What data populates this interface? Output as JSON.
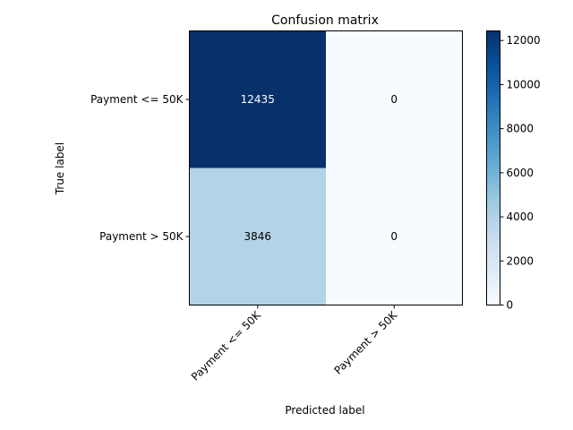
{
  "chart_data": {
    "type": "heatmap",
    "title": "Confusion matrix",
    "xlabel": "Predicted label",
    "ylabel": "True label",
    "x_categories": [
      "Payment <= 50K",
      "Payment > 50K"
    ],
    "y_categories": [
      "Payment <= 50K",
      "Payment > 50K"
    ],
    "values": [
      [
        12435,
        0
      ],
      [
        3846,
        0
      ]
    ],
    "value_labels": [
      [
        "12435",
        "0"
      ],
      [
        "3846",
        "0"
      ]
    ],
    "colorbar": {
      "ticks": [
        0,
        2000,
        4000,
        6000,
        8000,
        10000,
        12000
      ],
      "tick_labels": [
        "0",
        "2000",
        "4000",
        "6000",
        "8000",
        "10000",
        "12000"
      ],
      "range": [
        0,
        12435
      ],
      "colormap": "Blues",
      "color_low": "#f7fbff",
      "color_high": "#08306b"
    },
    "text_color_dark": "#000000",
    "text_color_light": "#ffffff",
    "grid": false
  }
}
